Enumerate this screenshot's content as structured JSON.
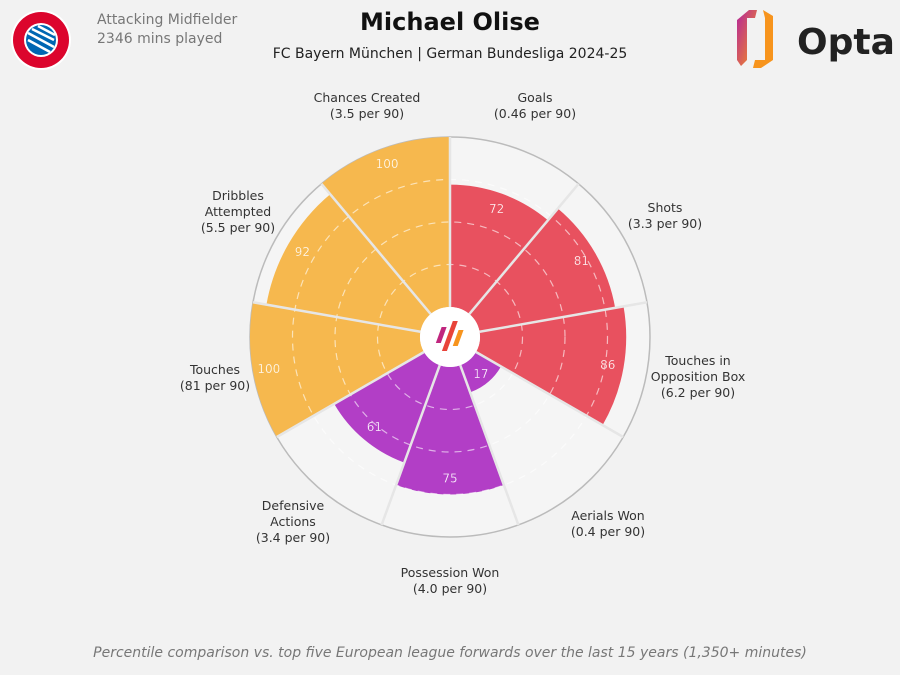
{
  "header": {
    "player_name": "Michael Olise",
    "position": "Attacking Midfielder",
    "minutes": "2346 mins played",
    "subtitle": "FC Bayern München | German Bundesliga 2024-25",
    "club_logo_text": "FC BAYERN MÜNCHEN",
    "brand_logo_text": "Opta"
  },
  "footer": "Percentile comparison vs. top five European league forwards over the last 15 years (1,350+ minutes)",
  "colors": {
    "attacking": "#E8515F",
    "defending": "#B23EC6",
    "possession": "#F6B84E",
    "background": "#f2f2f2"
  },
  "chart_data": {
    "type": "polar-bar",
    "rmax": 100,
    "grid_rings": [
      25,
      50,
      75
    ],
    "categories": [
      {
        "name": [
          "Goals"
        ],
        "per90": "(0.46 per 90)",
        "value": 72,
        "group": "attacking"
      },
      {
        "name": [
          "Shots"
        ],
        "per90": "(3.3 per 90)",
        "value": 81,
        "group": "attacking"
      },
      {
        "name": [
          "Touches in",
          "Opposition Box"
        ],
        "per90": "(6.2 per 90)",
        "value": 86,
        "group": "attacking"
      },
      {
        "name": [
          "Aerials Won"
        ],
        "per90": "(0.4 per 90)",
        "value": 17,
        "group": "defending"
      },
      {
        "name": [
          "Possession Won"
        ],
        "per90": "(4.0 per 90)",
        "value": 75,
        "group": "defending"
      },
      {
        "name": [
          "Defensive",
          "Actions"
        ],
        "per90": "(3.4 per 90)",
        "value": 61,
        "group": "defending"
      },
      {
        "name": [
          "Touches"
        ],
        "per90": "(81 per 90)",
        "value": 100,
        "group": "possession"
      },
      {
        "name": [
          "Dribbles",
          "Attempted"
        ],
        "per90": "(5.5 per 90)",
        "value": 92,
        "group": "possession"
      },
      {
        "name": [
          "Chances Created"
        ],
        "per90": "(3.5 per 90)",
        "value": 100,
        "group": "possession"
      }
    ]
  }
}
